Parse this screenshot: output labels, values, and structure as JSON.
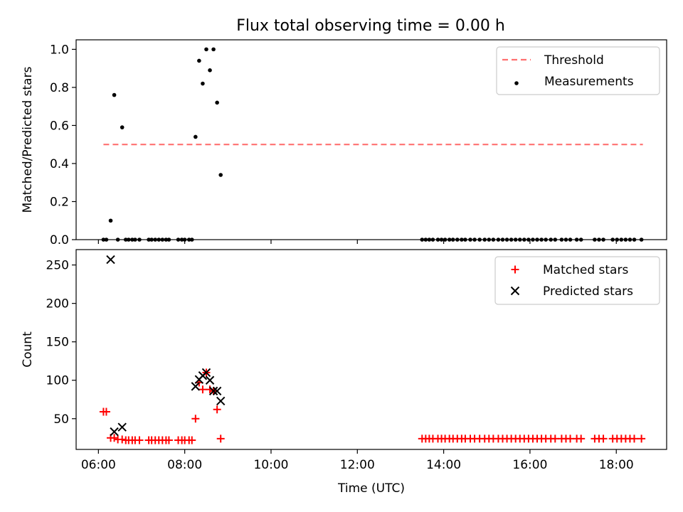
{
  "chart_data": [
    {
      "type": "scatter",
      "title": "Flux total observing time = 0.00 h",
      "xlabel": "",
      "ylabel": "Matched/Predicted stars",
      "xlim": [
        "05:29",
        "19:10"
      ],
      "ylim": [
        0.0,
        1.05
      ],
      "x_ticks": [
        "06:00",
        "08:00",
        "10:00",
        "12:00",
        "14:00",
        "16:00",
        "18:00"
      ],
      "x_ticks_labeled": false,
      "y_ticks": [
        "0.0",
        "0.2",
        "0.4",
        "0.6",
        "0.8",
        "1.0"
      ],
      "legend": "top-right",
      "grid": false,
      "series": [
        {
          "name": "Threshold",
          "kind": "line",
          "style": "dashed",
          "color": "#ff7070",
          "points": [
            [
              "06:07",
              0.5
            ],
            [
              "18:37",
              0.5
            ]
          ]
        },
        {
          "name": "Measurements",
          "kind": "scatter",
          "marker": "dot",
          "color": "#000000",
          "points": [
            [
              "06:07",
              0.0
            ],
            [
              "06:11",
              0.0
            ],
            [
              "06:17",
              0.1
            ],
            [
              "06:22",
              0.76
            ],
            [
              "06:27",
              0.0
            ],
            [
              "06:33",
              0.59
            ],
            [
              "06:38",
              0.0
            ],
            [
              "06:42",
              0.0
            ],
            [
              "06:47",
              0.0
            ],
            [
              "06:51",
              0.0
            ],
            [
              "06:57",
              0.0
            ],
            [
              "07:10",
              0.0
            ],
            [
              "07:14",
              0.0
            ],
            [
              "07:19",
              0.0
            ],
            [
              "07:24",
              0.0
            ],
            [
              "07:29",
              0.0
            ],
            [
              "07:34",
              0.0
            ],
            [
              "07:38",
              0.0
            ],
            [
              "07:51",
              0.0
            ],
            [
              "07:56",
              0.0
            ],
            [
              "08:00",
              0.0
            ],
            [
              "08:06",
              0.0
            ],
            [
              "08:10",
              0.0
            ],
            [
              "08:15",
              0.54
            ],
            [
              "08:20",
              0.94
            ],
            [
              "08:25",
              0.82
            ],
            [
              "08:30",
              1.0
            ],
            [
              "08:35",
              0.89
            ],
            [
              "08:40",
              1.0
            ],
            [
              "08:45",
              0.72
            ],
            [
              "08:50",
              0.34
            ],
            [
              "13:30",
              0.0
            ],
            [
              "13:35",
              0.0
            ],
            [
              "13:40",
              0.0
            ],
            [
              "13:45",
              0.0
            ],
            [
              "13:52",
              0.0
            ],
            [
              "13:57",
              0.0
            ],
            [
              "14:02",
              0.0
            ],
            [
              "14:08",
              0.0
            ],
            [
              "14:13",
              0.0
            ],
            [
              "14:19",
              0.0
            ],
            [
              "14:25",
              0.0
            ],
            [
              "14:30",
              0.0
            ],
            [
              "14:37",
              0.0
            ],
            [
              "14:43",
              0.0
            ],
            [
              "14:50",
              0.0
            ],
            [
              "14:57",
              0.0
            ],
            [
              "15:03",
              0.0
            ],
            [
              "15:09",
              0.0
            ],
            [
              "15:16",
              0.0
            ],
            [
              "15:22",
              0.0
            ],
            [
              "15:28",
              0.0
            ],
            [
              "15:34",
              0.0
            ],
            [
              "15:40",
              0.0
            ],
            [
              "15:46",
              0.0
            ],
            [
              "15:52",
              0.0
            ],
            [
              "15:58",
              0.0
            ],
            [
              "16:04",
              0.0
            ],
            [
              "16:10",
              0.0
            ],
            [
              "16:16",
              0.0
            ],
            [
              "16:22",
              0.0
            ],
            [
              "16:29",
              0.0
            ],
            [
              "16:35",
              0.0
            ],
            [
              "16:44",
              0.0
            ],
            [
              "16:50",
              0.0
            ],
            [
              "16:56",
              0.0
            ],
            [
              "17:05",
              0.0
            ],
            [
              "17:11",
              0.0
            ],
            [
              "17:30",
              0.0
            ],
            [
              "17:36",
              0.0
            ],
            [
              "17:42",
              0.0
            ],
            [
              "17:55",
              0.0
            ],
            [
              "18:01",
              0.0
            ],
            [
              "18:07",
              0.0
            ],
            [
              "18:13",
              0.0
            ],
            [
              "18:19",
              0.0
            ],
            [
              "18:25",
              0.0
            ],
            [
              "18:35",
              0.0
            ]
          ]
        }
      ]
    },
    {
      "type": "scatter",
      "title": "",
      "xlabel": "Time (UTC)",
      "ylabel": "Count",
      "xlim": [
        "05:29",
        "19:10"
      ],
      "ylim": [
        10,
        270
      ],
      "x_ticks": [
        "06:00",
        "08:00",
        "10:00",
        "12:00",
        "14:00",
        "16:00",
        "18:00"
      ],
      "x_ticks_labeled": true,
      "y_ticks": [
        "50",
        "100",
        "150",
        "200",
        "250"
      ],
      "legend": "top-right",
      "grid": false,
      "series": [
        {
          "name": "Matched stars",
          "kind": "scatter",
          "marker": "plus",
          "color": "#ff0000",
          "points": [
            [
              "06:07",
              59
            ],
            [
              "06:11",
              59
            ],
            [
              "06:17",
              25
            ],
            [
              "06:22",
              25
            ],
            [
              "06:27",
              23
            ],
            [
              "06:33",
              23
            ],
            [
              "06:38",
              22
            ],
            [
              "06:42",
              22
            ],
            [
              "06:47",
              22
            ],
            [
              "06:51",
              22
            ],
            [
              "06:57",
              22
            ],
            [
              "07:10",
              22
            ],
            [
              "07:14",
              22
            ],
            [
              "07:19",
              22
            ],
            [
              "07:24",
              22
            ],
            [
              "07:29",
              22
            ],
            [
              "07:34",
              22
            ],
            [
              "07:38",
              22
            ],
            [
              "07:51",
              22
            ],
            [
              "07:56",
              22
            ],
            [
              "08:00",
              22
            ],
            [
              "08:06",
              22
            ],
            [
              "08:10",
              22
            ],
            [
              "08:15",
              50
            ],
            [
              "08:20",
              97
            ],
            [
              "08:25",
              88
            ],
            [
              "08:30",
              110
            ],
            [
              "08:35",
              88
            ],
            [
              "08:40",
              86
            ],
            [
              "08:45",
              62
            ],
            [
              "08:50",
              24
            ],
            [
              "13:30",
              24
            ],
            [
              "13:35",
              24
            ],
            [
              "13:40",
              24
            ],
            [
              "13:45",
              24
            ],
            [
              "13:52",
              24
            ],
            [
              "13:57",
              24
            ],
            [
              "14:02",
              24
            ],
            [
              "14:08",
              24
            ],
            [
              "14:13",
              24
            ],
            [
              "14:19",
              24
            ],
            [
              "14:25",
              24
            ],
            [
              "14:30",
              24
            ],
            [
              "14:37",
              24
            ],
            [
              "14:43",
              24
            ],
            [
              "14:50",
              24
            ],
            [
              "14:57",
              24
            ],
            [
              "15:03",
              24
            ],
            [
              "15:09",
              24
            ],
            [
              "15:16",
              24
            ],
            [
              "15:22",
              24
            ],
            [
              "15:28",
              24
            ],
            [
              "15:34",
              24
            ],
            [
              "15:40",
              24
            ],
            [
              "15:46",
              24
            ],
            [
              "15:52",
              24
            ],
            [
              "15:58",
              24
            ],
            [
              "16:04",
              24
            ],
            [
              "16:10",
              24
            ],
            [
              "16:16",
              24
            ],
            [
              "16:22",
              24
            ],
            [
              "16:29",
              24
            ],
            [
              "16:35",
              24
            ],
            [
              "16:44",
              24
            ],
            [
              "16:50",
              24
            ],
            [
              "16:56",
              24
            ],
            [
              "17:05",
              24
            ],
            [
              "17:11",
              24
            ],
            [
              "17:30",
              24
            ],
            [
              "17:36",
              24
            ],
            [
              "17:42",
              24
            ],
            [
              "17:55",
              24
            ],
            [
              "18:01",
              24
            ],
            [
              "18:07",
              24
            ],
            [
              "18:13",
              24
            ],
            [
              "18:19",
              24
            ],
            [
              "18:25",
              24
            ],
            [
              "18:35",
              24
            ]
          ]
        },
        {
          "name": "Predicted stars",
          "kind": "scatter",
          "marker": "x",
          "color": "#000000",
          "points": [
            [
              "06:17",
              257
            ],
            [
              "06:22",
              33
            ],
            [
              "06:33",
              39
            ],
            [
              "08:15",
              92
            ],
            [
              "08:20",
              101
            ],
            [
              "08:25",
              106
            ],
            [
              "08:30",
              110
            ],
            [
              "08:35",
              100
            ],
            [
              "08:40",
              86
            ],
            [
              "08:45",
              86
            ],
            [
              "08:50",
              73
            ]
          ]
        }
      ]
    }
  ]
}
